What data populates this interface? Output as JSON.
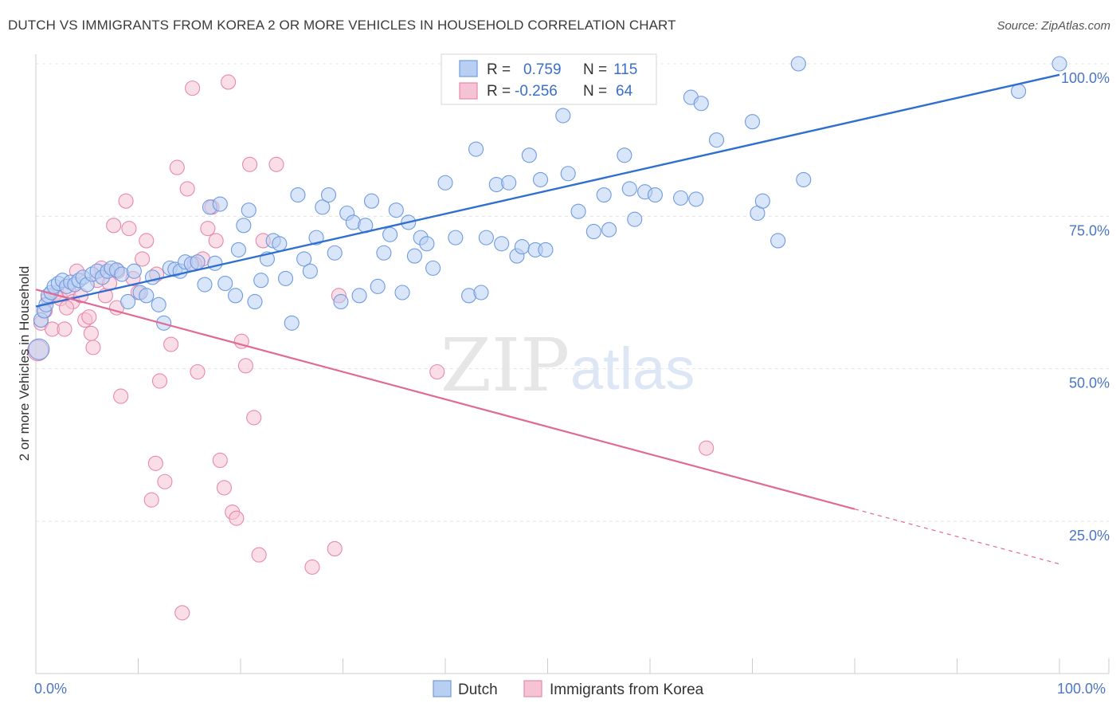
{
  "title": "DUTCH VS IMMIGRANTS FROM KOREA 2 OR MORE VEHICLES IN HOUSEHOLD CORRELATION CHART",
  "source": "Source: ZipAtlas.com",
  "watermark": {
    "zip": "ZIP",
    "atlas": "atlas"
  },
  "colors": {
    "dutch": "#6f9be0",
    "dutch_fill": "#b9cff2",
    "korea": "#e888aa",
    "korea_fill": "#f6c3d4",
    "dutch_line": "#2e6fd0",
    "korea_line": "#e06a96",
    "tick_text": "#4a76c6"
  },
  "legend": {
    "rows": [
      {
        "r_label": "R =",
        "r_value": "0.759",
        "n_label": "N =",
        "n_value": "115"
      },
      {
        "r_label": "R =",
        "r_value": "-0.256",
        "n_label": "N =",
        "n_value": "64"
      }
    ]
  },
  "chart_data": {
    "type": "scatter",
    "title": "DUTCH VS IMMIGRANTS FROM KOREA 2 OR MORE VEHICLES IN HOUSEHOLD CORRELATION CHART",
    "xlabel": "",
    "ylabel": "2 or more Vehicles in Household",
    "xlim": [
      0,
      100
    ],
    "ylim": [
      0,
      102
    ],
    "x_tick_labels": [
      "0.0%",
      "100.0%"
    ],
    "y_ticks": [
      25,
      50,
      75,
      100
    ],
    "y_tick_labels": [
      "25.0%",
      "50.0%",
      "75.0%",
      "100.0%"
    ],
    "grid": true,
    "legend_placement": "bottom",
    "series": [
      {
        "name": "Dutch",
        "trend": {
          "x": [
            0,
            100
          ],
          "y": [
            60.2,
            98.2
          ]
        },
        "points": [
          [
            0.3,
            53.2
          ],
          [
            0.5,
            58
          ],
          [
            0.8,
            59.5
          ],
          [
            1.0,
            60.5
          ],
          [
            1.2,
            62
          ],
          [
            1.5,
            62.5
          ],
          [
            1.8,
            63.5
          ],
          [
            2.2,
            64
          ],
          [
            2.6,
            64.5
          ],
          [
            3.0,
            63.5
          ],
          [
            3.4,
            64.2
          ],
          [
            3.8,
            63.8
          ],
          [
            4.2,
            64.5
          ],
          [
            4.6,
            65
          ],
          [
            5.0,
            63.8
          ],
          [
            5.5,
            65.5
          ],
          [
            6.0,
            66
          ],
          [
            6.5,
            65
          ],
          [
            7.0,
            66
          ],
          [
            7.4,
            66.5
          ],
          [
            7.9,
            66.2
          ],
          [
            8.4,
            65.5
          ],
          [
            9.0,
            61
          ],
          [
            9.6,
            66
          ],
          [
            10.2,
            62.5
          ],
          [
            10.8,
            62
          ],
          [
            11.4,
            65
          ],
          [
            12.0,
            60.5
          ],
          [
            12.5,
            57.5
          ],
          [
            13.1,
            66.5
          ],
          [
            13.6,
            66.3
          ],
          [
            14.1,
            66
          ],
          [
            14.6,
            67.5
          ],
          [
            15.2,
            67.2
          ],
          [
            15.8,
            67.5
          ],
          [
            16.5,
            63.8
          ],
          [
            17.0,
            76.5
          ],
          [
            17.5,
            67.3
          ],
          [
            18.0,
            77
          ],
          [
            18.5,
            64
          ],
          [
            19.5,
            62
          ],
          [
            19.8,
            69.5
          ],
          [
            20.3,
            73.5
          ],
          [
            20.8,
            76
          ],
          [
            21.4,
            61
          ],
          [
            22.0,
            64.5
          ],
          [
            22.6,
            68
          ],
          [
            23.2,
            71
          ],
          [
            23.8,
            70.5
          ],
          [
            24.4,
            64.8
          ],
          [
            25.0,
            57.5
          ],
          [
            25.6,
            78.5
          ],
          [
            26.2,
            68
          ],
          [
            26.8,
            66
          ],
          [
            27.4,
            71.5
          ],
          [
            28.0,
            76.5
          ],
          [
            28.6,
            78.5
          ],
          [
            29.2,
            69
          ],
          [
            29.8,
            61
          ],
          [
            30.4,
            75.5
          ],
          [
            31.0,
            74
          ],
          [
            31.6,
            62
          ],
          [
            32.2,
            73.5
          ],
          [
            32.8,
            77.5
          ],
          [
            33.4,
            63.5
          ],
          [
            34.0,
            69
          ],
          [
            34.6,
            72
          ],
          [
            35.2,
            76
          ],
          [
            35.8,
            62.5
          ],
          [
            36.4,
            74
          ],
          [
            37.0,
            68.5
          ],
          [
            37.6,
            71.5
          ],
          [
            38.2,
            70.5
          ],
          [
            38.8,
            66.5
          ],
          [
            40.0,
            80.5
          ],
          [
            41.0,
            71.5
          ],
          [
            42.0,
            96
          ],
          [
            42.3,
            62
          ],
          [
            43.0,
            86
          ],
          [
            43.5,
            62.5
          ],
          [
            44.0,
            71.5
          ],
          [
            45.0,
            80.2
          ],
          [
            45.5,
            70.5
          ],
          [
            46.2,
            80.5
          ],
          [
            47.0,
            68.5
          ],
          [
            47.5,
            70
          ],
          [
            48.2,
            85
          ],
          [
            48.8,
            69.5
          ],
          [
            49.3,
            81
          ],
          [
            49.8,
            69.5
          ],
          [
            51.5,
            91.5
          ],
          [
            52.0,
            82
          ],
          [
            53.0,
            75.8
          ],
          [
            54.5,
            72.5
          ],
          [
            55.5,
            78.5
          ],
          [
            56.0,
            72.8
          ],
          [
            57.0,
            98
          ],
          [
            57.5,
            85
          ],
          [
            58.0,
            79.5
          ],
          [
            58.5,
            74.5
          ],
          [
            59.5,
            79
          ],
          [
            60.5,
            78.5
          ],
          [
            63.0,
            78
          ],
          [
            64.0,
            94.5
          ],
          [
            64.5,
            77.8
          ],
          [
            65.0,
            93.5
          ],
          [
            66.5,
            87.5
          ],
          [
            70.0,
            90.5
          ],
          [
            70.5,
            75.5
          ],
          [
            71.0,
            77.5
          ],
          [
            72.5,
            71
          ],
          [
            74.5,
            100
          ],
          [
            75.0,
            81
          ],
          [
            96.0,
            95.5
          ],
          [
            100.0,
            100
          ]
        ]
      },
      {
        "name": "Immigrants from Korea",
        "trend": {
          "x": [
            0,
            80
          ],
          "y": [
            63.0,
            27.0
          ],
          "dashed_extension": {
            "x": [
              80,
              100
            ],
            "y": [
              27.0,
              18.0
            ]
          }
        },
        "points": [
          [
            0.2,
            53
          ],
          [
            0.5,
            57.5
          ],
          [
            0.9,
            59.5
          ],
          [
            1.2,
            61.5
          ],
          [
            1.6,
            56.5
          ],
          [
            2.0,
            62.5
          ],
          [
            2.4,
            61.5
          ],
          [
            2.8,
            56.5
          ],
          [
            3.2,
            62.8
          ],
          [
            3.6,
            61
          ],
          [
            4.0,
            66
          ],
          [
            4.4,
            62
          ],
          [
            4.8,
            58
          ],
          [
            5.2,
            58.5
          ],
          [
            5.6,
            53.5
          ],
          [
            6.0,
            64.5
          ],
          [
            6.4,
            66.5
          ],
          [
            6.8,
            62
          ],
          [
            7.2,
            64
          ],
          [
            7.6,
            73.5
          ],
          [
            8.0,
            66
          ],
          [
            8.3,
            45.5
          ],
          [
            8.8,
            77.5
          ],
          [
            9.1,
            73
          ],
          [
            9.5,
            64.8
          ],
          [
            10.0,
            62.5
          ],
          [
            10.4,
            68
          ],
          [
            10.8,
            71
          ],
          [
            11.3,
            28.5
          ],
          [
            11.7,
            34.5
          ],
          [
            12.1,
            48
          ],
          [
            12.6,
            31.5
          ],
          [
            13.2,
            54
          ],
          [
            13.8,
            83
          ],
          [
            14.3,
            10
          ],
          [
            14.8,
            79.5
          ],
          [
            15.3,
            96
          ],
          [
            15.8,
            49.5
          ],
          [
            16.3,
            68
          ],
          [
            16.8,
            73
          ],
          [
            17.2,
            76.5
          ],
          [
            17.6,
            71
          ],
          [
            18.0,
            35
          ],
          [
            18.4,
            30.5
          ],
          [
            18.8,
            97
          ],
          [
            19.2,
            26.5
          ],
          [
            19.6,
            25.5
          ],
          [
            20.1,
            54.5
          ],
          [
            20.5,
            50.5
          ],
          [
            20.9,
            83.5
          ],
          [
            21.3,
            42
          ],
          [
            21.8,
            19.5
          ],
          [
            22.2,
            71
          ],
          [
            23.5,
            83.5
          ],
          [
            27.0,
            17.5
          ],
          [
            29.2,
            20.5
          ],
          [
            29.6,
            62
          ],
          [
            39.2,
            49.5
          ],
          [
            65.5,
            37
          ],
          [
            5.4,
            55.8
          ],
          [
            3.0,
            60
          ],
          [
            11.8,
            65.5
          ],
          [
            15.5,
            67.2
          ],
          [
            7.9,
            60
          ]
        ]
      }
    ]
  },
  "bottom_legend": [
    {
      "label": "Dutch"
    },
    {
      "label": "Immigrants from Korea"
    }
  ]
}
